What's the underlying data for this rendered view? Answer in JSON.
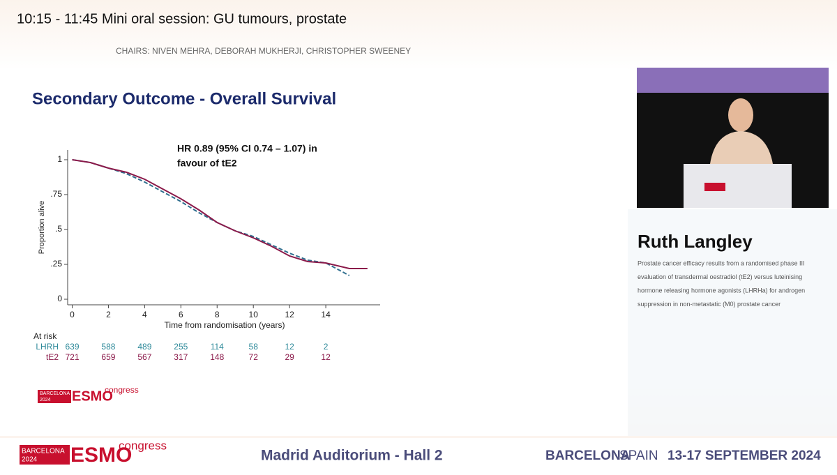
{
  "header": {
    "session": "10:15 - 11:45  Mini oral session: GU tumours, prostate",
    "chairs": "CHAIRS: NIVEN MEHRA, DEBORAH MUKHERJI, CHRISTOPHER SWEENEY"
  },
  "slide": {
    "title": "Secondary Outcome - Overall Survival"
  },
  "logo": {
    "city": "BARCELONA",
    "year": "2024",
    "brand": "ESMO",
    "event": "congress"
  },
  "chart_data": {
    "type": "line",
    "annotation": [
      "HR 0.89 (95% CI 0.74 – 1.07) in",
      "favour of tE2"
    ],
    "x_label": "Time from randomisation (years)",
    "y_label": "Proportion alive",
    "xlim": [
      -0.25,
      17
    ],
    "ylim": [
      -0.04,
      1.07
    ],
    "xticks": [
      0,
      2,
      4,
      6,
      8,
      10,
      12,
      14
    ],
    "yticks": [
      0,
      {
        "value": 0.25,
        "label": ".25"
      },
      {
        "value": 0.5,
        "label": ".5"
      },
      {
        "value": 0.75,
        "label": ".75"
      },
      1
    ],
    "series": [
      {
        "name": "LHRH",
        "color": "#2f6f8f",
        "x": [
          0,
          1,
          2,
          3,
          4,
          5,
          6,
          7,
          8,
          9,
          10,
          11,
          12,
          13,
          14,
          15.3
        ],
        "values": [
          1,
          0.98,
          0.94,
          0.9,
          0.84,
          0.77,
          0.7,
          0.62,
          0.55,
          0.49,
          0.45,
          0.39,
          0.33,
          0.28,
          0.26,
          0.17
        ]
      },
      {
        "name": "tE2",
        "color": "#8b1a4a",
        "x": [
          0,
          1,
          2,
          3,
          4,
          5,
          6,
          7,
          8,
          9,
          10,
          11,
          12,
          13,
          14,
          15.3,
          16.3
        ],
        "values": [
          1,
          0.98,
          0.94,
          0.91,
          0.86,
          0.79,
          0.72,
          0.64,
          0.55,
          0.49,
          0.44,
          0.38,
          0.31,
          0.27,
          0.26,
          0.22,
          0.22
        ]
      }
    ],
    "at_risk": {
      "title": "At risk",
      "rows": [
        {
          "name": "LHRH",
          "color": "#2f8a9a",
          "values": [
            "639",
            "588",
            "489",
            "255",
            "114",
            "58",
            "12",
            "2"
          ]
        },
        {
          "name": "tE2",
          "color": "#8b1a4a",
          "values": [
            "721",
            "659",
            "567",
            "317",
            "148",
            "72",
            "29",
            "12"
          ]
        }
      ]
    }
  },
  "speaker": {
    "name": "Ruth Langley",
    "description": [
      "Prostate cancer efficacy results from a randomised phase III",
      "evaluation of transdermal oestradiol (tE2) versus luteinising",
      "hormone releasing hormone agonists (LHRHa) for androgen",
      "suppression in non-metastatic (M0) prostate cancer"
    ]
  },
  "footer": {
    "venue": "Madrid Auditorium - Hall 2",
    "city": "BARCELONA",
    "country": "SPAIN",
    "dates": "13-17 SEPTEMBER 2024"
  }
}
